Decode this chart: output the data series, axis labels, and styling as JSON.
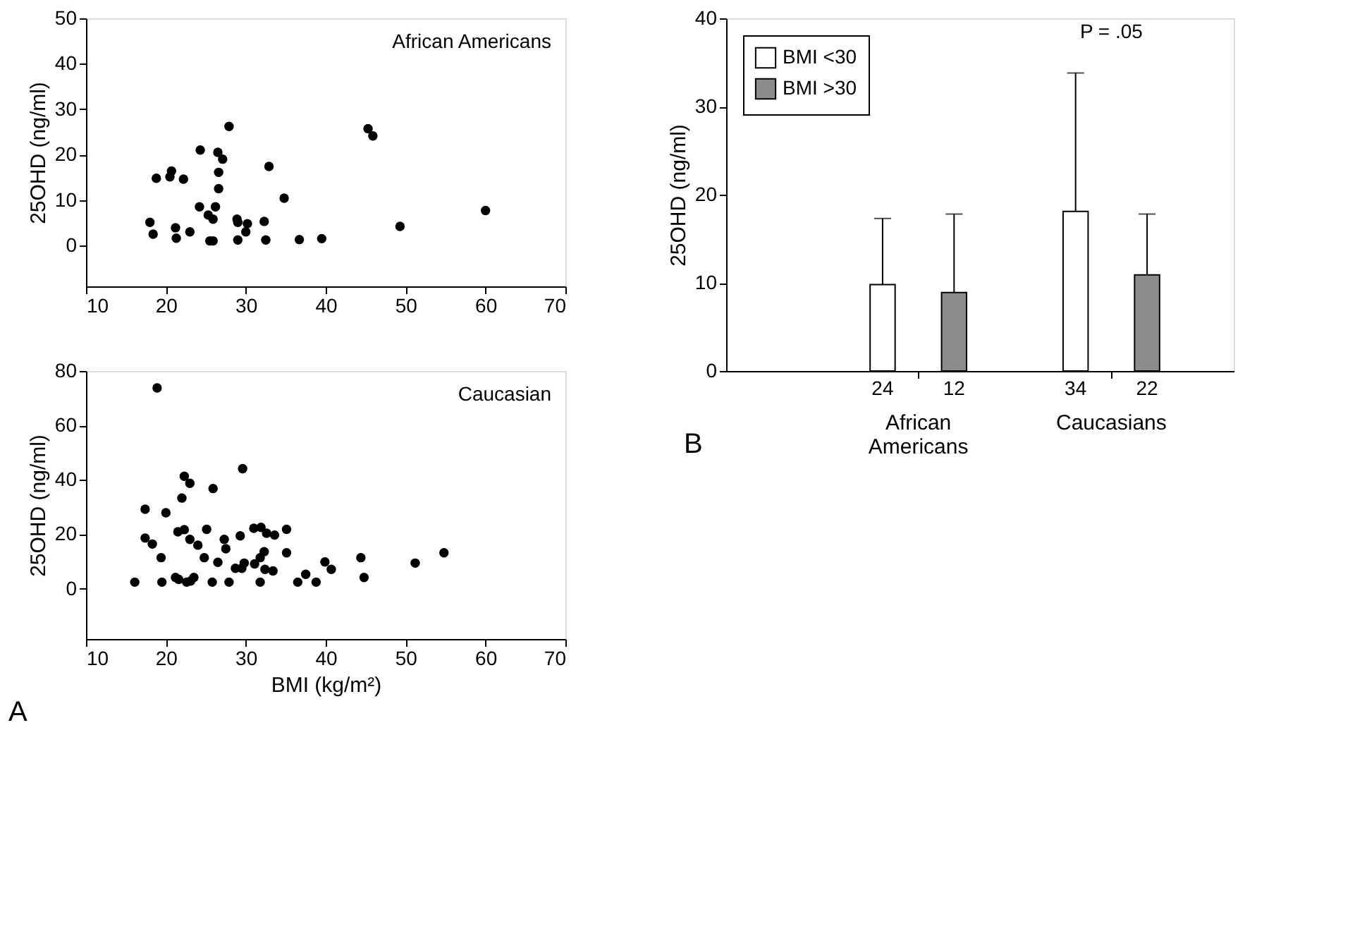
{
  "chart_data": [
    {
      "type": "scatter",
      "title": "African Americans",
      "ylabel": "25OHD (ng/ml)",
      "color": "#000000",
      "marker": "circle",
      "xlim": [
        10,
        70
      ],
      "xticks": [
        10,
        20,
        30,
        40,
        50,
        60,
        70
      ],
      "ylim": [
        -9,
        50
      ],
      "yticks": [
        0,
        10,
        20,
        30,
        40,
        50
      ],
      "x": [
        18.0,
        18.4,
        18.8,
        20.7,
        20.5,
        22.2,
        21.2,
        21.3,
        23.0,
        24.3,
        24.2,
        25.3,
        25.5,
        25.9,
        25.9,
        26.2,
        26.5,
        27.1,
        26.6,
        26.6,
        27.9,
        28.9,
        29.0,
        29.0,
        30.2,
        30.0,
        32.3,
        32.5,
        32.9,
        34.8,
        36.7,
        39.5,
        45.3,
        45.9,
        49.3,
        60.0
      ],
      "values": [
        5.1,
        2.5,
        14.8,
        16.4,
        15.1,
        14.6,
        3.9,
        1.6,
        3.0,
        21.0,
        8.5,
        6.7,
        1.0,
        1.0,
        5.8,
        8.5,
        20.5,
        19.0,
        16.1,
        12.5,
        26.2,
        5.8,
        5.1,
        1.2,
        4.8,
        3.0,
        5.3,
        1.2,
        17.4,
        10.4,
        1.3,
        1.5,
        25.7,
        24.1,
        4.2,
        7.7
      ]
    },
    {
      "type": "scatter",
      "title": "Caucasian",
      "xlabel": "BMI (kg/m²)",
      "ylabel": "25OHD (ng/ml)",
      "color": "#000000",
      "marker": "circle",
      "xlim": [
        10,
        70
      ],
      "xticks": [
        10,
        20,
        30,
        40,
        50,
        60,
        70
      ],
      "ylim": [
        -18.5,
        80
      ],
      "yticks": [
        0,
        20,
        40,
        60,
        80
      ],
      "annotations": [
        "A"
      ],
      "x": [
        16.1,
        18.9,
        17.4,
        17.4,
        18.3,
        19.4,
        19.5,
        20.0,
        21.2,
        21.6,
        21.5,
        22.3,
        22.0,
        22.3,
        23.0,
        22.6,
        23.0,
        23.1,
        23.5,
        24.0,
        24.8,
        25.1,
        25.8,
        25.9,
        26.5,
        27.3,
        27.5,
        27.9,
        28.7,
        29.3,
        29.5,
        29.6,
        29.8,
        31.1,
        31.0,
        31.9,
        31.8,
        31.8,
        32.3,
        32.4,
        32.6,
        33.4,
        33.6,
        35.1,
        35.1,
        36.5,
        37.5,
        38.8,
        39.9,
        40.7,
        44.4,
        44.8,
        51.2,
        54.8
      ],
      "values": [
        2.4,
        73.8,
        29.2,
        18.6,
        16.4,
        11.4,
        2.4,
        27.9,
        4.1,
        3.4,
        20.9,
        21.7,
        33.3,
        41.3,
        38.7,
        2.4,
        18.1,
        2.8,
        4.1,
        16.0,
        11.4,
        21.8,
        2.4,
        36.8,
        9.7,
        18.1,
        14.7,
        2.4,
        7.5,
        19.4,
        7.5,
        44.1,
        9.4,
        9.1,
        22.2,
        22.5,
        2.4,
        11.4,
        13.6,
        7.1,
        20.4,
        6.5,
        19.7,
        21.8,
        13.2,
        2.4,
        5.3,
        2.4,
        9.8,
        7.1,
        11.4,
        4.1,
        9.4,
        13.2
      ]
    },
    {
      "type": "bar",
      "ylabel": "25OHD (ng/ml)",
      "categories": [
        "African Americans",
        "Caucasians"
      ],
      "ylim": [
        0,
        40
      ],
      "yticks": [
        0,
        10,
        20,
        30,
        40
      ],
      "legend": "top left",
      "series": [
        {
          "name": "BMI <30",
          "color": "#ffffff",
          "values": [
            9.8,
            18.1
          ],
          "errors": [
            [
              9.8,
              17.3
            ],
            [
              18.1,
              33.8
            ]
          ]
        },
        {
          "name": "BMI >30",
          "color": "#8c8c8c",
          "values": [
            8.9,
            10.9
          ],
          "errors": [
            [
              8.9,
              17.8
            ],
            [
              10.9,
              17.8
            ]
          ]
        }
      ],
      "annotations": [
        "24",
        "12",
        "34",
        "22",
        "P = .05",
        "B"
      ]
    }
  ]
}
